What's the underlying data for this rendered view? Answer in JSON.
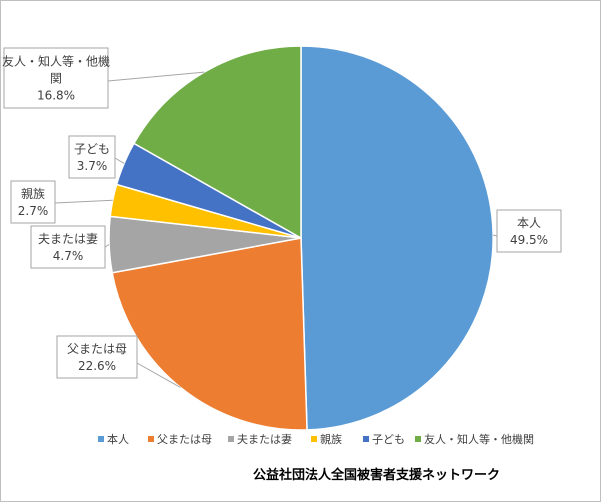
{
  "chart_data": {
    "type": "pie",
    "categories": [
      "本人",
      "父または母",
      "夫または妻",
      "親族",
      "子ども",
      "友人・知人等・他機関"
    ],
    "values": [
      49.5,
      22.6,
      4.7,
      2.7,
      3.7,
      16.8
    ],
    "value_labels": [
      "49.5%",
      "22.6%",
      "4.7%",
      "2.7%",
      "3.7%",
      "16.8%"
    ],
    "slice_labels": [
      [
        "本人",
        "49.5%"
      ],
      [
        "父または母",
        "22.6%"
      ],
      [
        "夫または妻",
        "4.7%"
      ],
      [
        "親族",
        "2.7%"
      ],
      [
        "子ども",
        "3.7%"
      ],
      [
        "友人・知人等・他機",
        "関",
        "16.8%"
      ]
    ],
    "colors": [
      "#5b9bd5",
      "#ed7d31",
      "#a5a5a5",
      "#ffc000",
      "#4472c4",
      "#70ad47"
    ],
    "start_angle": "12 o'clock, clockwise",
    "legend_position": "bottom"
  },
  "credit": "公益社団法人全国被害者支援ネットワーク"
}
